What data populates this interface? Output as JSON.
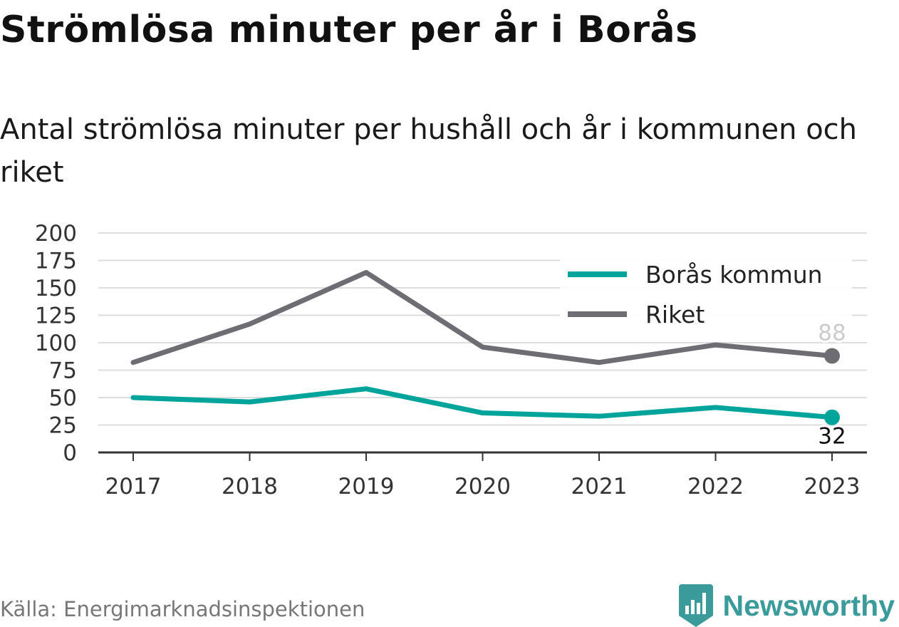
{
  "title": "Strömlösa minuter per år i Borås",
  "subtitle": "Antal strömlösa minuter per hushåll och år i kommunen och riket",
  "source": "Källa: Energimarknadsinspektionen",
  "brand": {
    "name": "Newsworthy",
    "icon": "bar-chart-logo-icon",
    "color": "#3b9a9a"
  },
  "colors": {
    "boras": "#00a49a",
    "riket": "#6e6d73",
    "grid": "#dddddd",
    "axis": "#333333"
  },
  "chart_data": {
    "type": "line",
    "x": [
      "2017",
      "2018",
      "2019",
      "2020",
      "2021",
      "2022",
      "2023"
    ],
    "series": [
      {
        "name": "Borås kommun",
        "values": [
          50,
          46,
          58,
          36,
          33,
          41,
          32
        ]
      },
      {
        "name": "Riket",
        "values": [
          82,
          117,
          164,
          96,
          82,
          98,
          88
        ]
      }
    ],
    "ylim": [
      0,
      200
    ],
    "yticks": [
      "0",
      "25",
      "50",
      "75",
      "100",
      "125",
      "150",
      "175",
      "200"
    ],
    "end_labels": [
      "32",
      "88"
    ],
    "legend": "top-right",
    "grid": true
  }
}
